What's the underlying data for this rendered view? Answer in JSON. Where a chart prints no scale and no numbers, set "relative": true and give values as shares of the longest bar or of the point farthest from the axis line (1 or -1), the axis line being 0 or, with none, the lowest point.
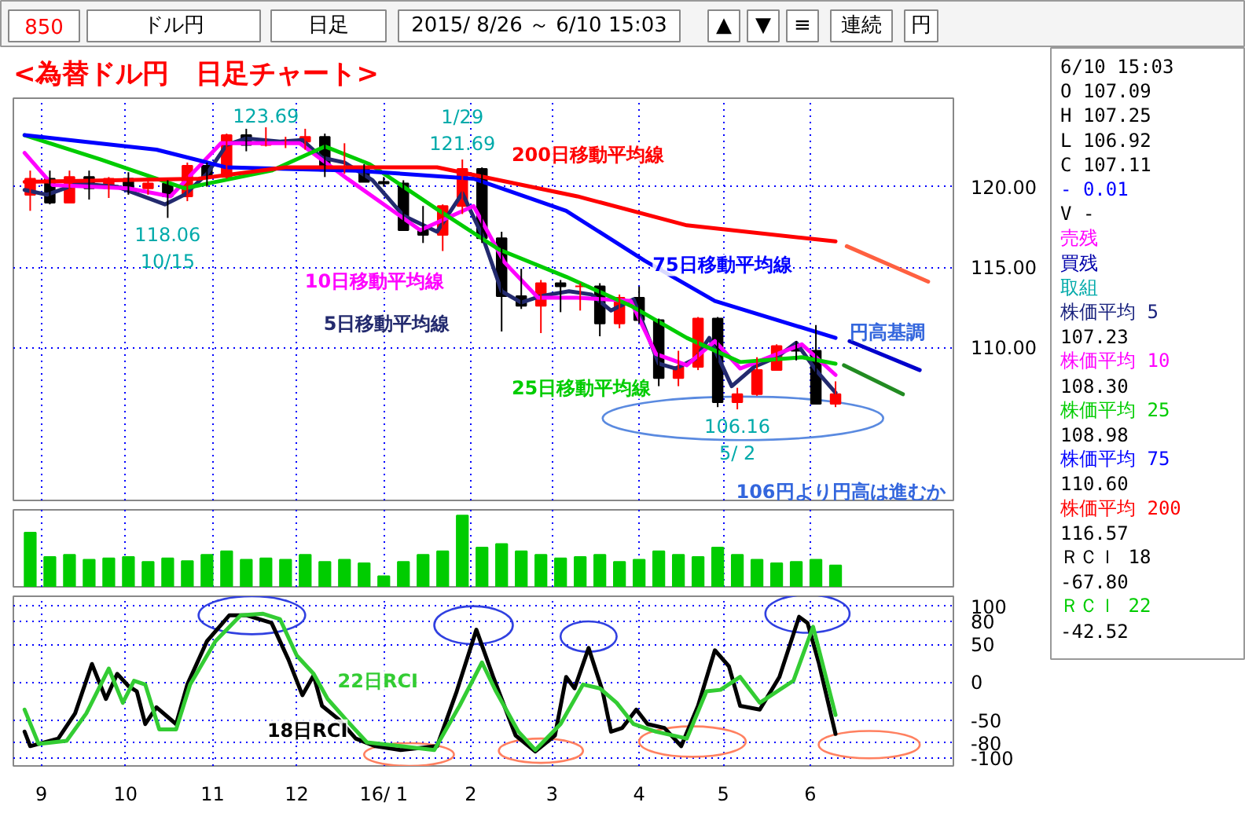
{
  "chart_data": [
    {
      "type": "other",
      "annotations": [
        "850",
        "ドル円",
        "日足",
        "2015/ 8/26 ～ 6/10 15:03",
        "▲",
        "▼",
        "≡",
        "連続",
        "円"
      ]
    },
    {
      "type": "candlestick",
      "title": "<為替ドル円　日足チャート>",
      "x": [
        "2015-08-28",
        "2015-09-04",
        "2015-09-11",
        "2015-09-18",
        "2015-09-25",
        "2015-10-02",
        "2015-10-09",
        "2015-10-16",
        "2015-10-23",
        "2015-10-30",
        "2015-11-06",
        "2015-11-13",
        "2015-11-20",
        "2015-11-27",
        "2015-12-04",
        "2015-12-11",
        "2015-12-18",
        "2015-12-25",
        "2016-01-01",
        "2016-01-08",
        "2016-01-15",
        "2016-01-22",
        "2016-01-29",
        "2016-02-05",
        "2016-02-12",
        "2016-02-19",
        "2016-02-26",
        "2016-03-04",
        "2016-03-11",
        "2016-03-18",
        "2016-03-25",
        "2016-04-01",
        "2016-04-08",
        "2016-04-15",
        "2016-04-22",
        "2016-04-29",
        "2016-05-06",
        "2016-05-13",
        "2016-05-20",
        "2016-05-27",
        "2016-06-03",
        "2016-06-10"
      ],
      "ohlc": [
        [
          119.5,
          121.0,
          118.5,
          120.5
        ],
        [
          120.5,
          121.0,
          118.9,
          119.0
        ],
        [
          119.0,
          121.0,
          119.0,
          120.6
        ],
        [
          120.6,
          121.0,
          119.2,
          119.9
        ],
        [
          119.9,
          120.6,
          119.3,
          120.5
        ],
        [
          120.5,
          120.9,
          119.5,
          119.9
        ],
        [
          119.9,
          120.5,
          119.5,
          120.2
        ],
        [
          120.2,
          120.4,
          118.06,
          119.4
        ],
        [
          119.4,
          121.5,
          119.1,
          121.3
        ],
        [
          121.3,
          121.5,
          120.0,
          120.6
        ],
        [
          120.6,
          123.3,
          120.5,
          123.2
        ],
        [
          123.2,
          123.6,
          122.2,
          122.6
        ],
        [
          122.6,
          123.69,
          122.5,
          122.8
        ],
        [
          122.8,
          123.1,
          122.4,
          122.8
        ],
        [
          122.8,
          123.6,
          122.3,
          123.1
        ],
        [
          123.1,
          123.3,
          120.6,
          121.0
        ],
        [
          121.0,
          122.7,
          120.8,
          121.1
        ],
        [
          121.1,
          121.4,
          120.3,
          120.3
        ],
        [
          120.3,
          120.6,
          120.0,
          120.2
        ],
        [
          120.2,
          120.4,
          117.3,
          117.3
        ],
        [
          117.3,
          118.8,
          116.5,
          117.0
        ],
        [
          117.0,
          118.9,
          116.0,
          118.8
        ],
        [
          118.8,
          121.69,
          118.3,
          121.1
        ],
        [
          121.1,
          121.2,
          116.5,
          116.8
        ],
        [
          116.8,
          117.2,
          111.0,
          113.2
        ],
        [
          113.2,
          114.9,
          112.4,
          112.6
        ],
        [
          112.6,
          114.2,
          110.9,
          114.0
        ],
        [
          114.0,
          114.2,
          112.2,
          113.8
        ],
        [
          113.8,
          114.0,
          112.3,
          113.8
        ],
        [
          113.8,
          114.0,
          110.7,
          111.5
        ],
        [
          111.5,
          113.3,
          111.2,
          113.1
        ],
        [
          113.1,
          113.8,
          111.5,
          111.7
        ],
        [
          111.7,
          111.8,
          107.6,
          108.1
        ],
        [
          108.1,
          109.8,
          107.6,
          108.8
        ],
        [
          108.8,
          111.9,
          108.6,
          111.8
        ],
        [
          111.8,
          111.9,
          106.3,
          106.6
        ],
        [
          106.6,
          107.5,
          106.16,
          107.1
        ],
        [
          107.1,
          109.4,
          107.0,
          108.6
        ],
        [
          108.6,
          110.2,
          108.6,
          110.1
        ],
        [
          110.1,
          110.4,
          109.2,
          109.8
        ],
        [
          109.8,
          111.4,
          106.5,
          106.5
        ],
        [
          106.5,
          107.9,
          106.3,
          107.1
        ]
      ],
      "series": [
        {
          "type": "line",
          "name": "5日移動平均線",
          "color": "#232a6e",
          "x": [
            "2015-08-26",
            "2015-09-03",
            "2015-09-14",
            "2015-09-28",
            "2015-10-15",
            "2015-10-22",
            "2015-10-30",
            "2015-11-06",
            "2015-11-13",
            "2015-11-25",
            "2015-12-03",
            "2015-12-10",
            "2015-12-18",
            "2015-12-28",
            "2016-01-08",
            "2016-01-20",
            "2016-01-29",
            "2016-02-05",
            "2016-02-12",
            "2016-02-19",
            "2016-02-26",
            "2016-03-07",
            "2016-03-15",
            "2016-03-22",
            "2016-03-30",
            "2016-04-08",
            "2016-04-14",
            "2016-04-21",
            "2016-04-26",
            "2016-05-04",
            "2016-05-12",
            "2016-05-20",
            "2016-05-27",
            "2016-06-03",
            "2016-06-10"
          ],
          "values": [
            119.8,
            119.5,
            120.2,
            120.0,
            118.9,
            119.5,
            120.8,
            122.6,
            123.0,
            122.8,
            122.9,
            121.8,
            121.5,
            120.4,
            118.2,
            117.2,
            119.6,
            117.0,
            113.5,
            112.8,
            113.2,
            113.5,
            113.3,
            112.3,
            113.0,
            109.0,
            108.7,
            109.3,
            110.6,
            107.6,
            108.8,
            109.4,
            110.3,
            108.6,
            107.2
          ]
        },
        {
          "type": "line",
          "name": "10日移動平均線",
          "color": "#ff00ff",
          "x": [
            "2015-08-26",
            "2015-09-05",
            "2015-10-02",
            "2015-10-17",
            "2015-11-04",
            "2015-12-02",
            "2015-12-19",
            "2016-01-14",
            "2016-02-02",
            "2016-02-13",
            "2016-02-25",
            "2016-03-10",
            "2016-03-29",
            "2016-04-07",
            "2016-04-18",
            "2016-04-28",
            "2016-05-07",
            "2016-05-29",
            "2016-06-10"
          ],
          "values": [
            122.1,
            120.1,
            119.9,
            119.4,
            122.7,
            122.7,
            120.5,
            117.3,
            118.8,
            115.3,
            113.1,
            113.1,
            112.9,
            109.6,
            108.9,
            110.4,
            108.7,
            110.2,
            108.3
          ]
        },
        {
          "type": "line",
          "name": "25日移動平均線",
          "color": "#00cc00",
          "x": [
            "2015-08-26",
            "2015-09-22",
            "2015-10-22",
            "2015-11-22",
            "2015-12-11",
            "2015-12-27",
            "2016-01-20",
            "2016-02-11",
            "2016-03-06",
            "2016-03-29",
            "2016-04-18",
            "2016-05-07",
            "2016-05-29",
            "2016-06-10"
          ],
          "values": [
            123.2,
            121.7,
            119.9,
            121.0,
            122.5,
            121.4,
            118.6,
            116.1,
            114.4,
            112.6,
            110.6,
            109.1,
            109.4,
            109.0
          ]
        },
        {
          "type": "line",
          "name": "75日移動平均線",
          "color": "#0000ff",
          "x": [
            "2015-08-26",
            "2015-10-12",
            "2015-11-06",
            "2015-12-22",
            "2016-02-02",
            "2016-03-06",
            "2016-04-03",
            "2016-04-28",
            "2016-06-10"
          ],
          "values": [
            123.2,
            122.3,
            121.2,
            121.0,
            120.5,
            118.5,
            115.4,
            112.9,
            110.6
          ]
        },
        {
          "type": "line",
          "name": "200日移動平均線",
          "color": "#ff0000",
          "x": [
            "2015-08-26",
            "2015-10-27",
            "2015-11-27",
            "2016-01-20",
            "2016-03-10",
            "2016-04-18",
            "2016-06-10"
          ],
          "values": [
            120.3,
            120.5,
            121.2,
            121.2,
            119.4,
            117.6,
            116.6
          ]
        },
        {
          "type": "line",
          "color": "#ff6040",
          "x": [
            "2016-06-14",
            "2016-07-13"
          ],
          "values": [
            116.3,
            114.1
          ]
        },
        {
          "type": "line",
          "color": "#0000cc",
          "x": [
            "2016-06-15",
            "2016-07-10"
          ],
          "values": [
            110.4,
            108.6
          ]
        },
        {
          "type": "line",
          "color": "#228b22",
          "x": [
            "2016-06-13",
            "2016-07-04"
          ],
          "values": [
            108.9,
            107.1
          ]
        }
      ],
      "xlim": [
        "2015-08-22",
        "2016-07-22"
      ],
      "ylim": [
        100.5,
        125.5
      ],
      "xticks": [
        {
          "value": "2015-09-01",
          "label": null
        },
        {
          "value": "2015-10-01",
          "label": null
        },
        {
          "value": "2015-11-01",
          "label": null
        },
        {
          "value": "2015-12-01",
          "label": null
        },
        {
          "value": "2016-01-01",
          "label": null
        },
        {
          "value": "2016-02-01",
          "label": null
        },
        {
          "value": "2016-03-01",
          "label": null
        },
        {
          "value": "2016-04-01",
          "label": null
        },
        {
          "value": "2016-05-01",
          "label": null
        },
        {
          "value": "2016-06-01",
          "label": null
        }
      ],
      "yticks": [
        {
          "value": 110,
          "label": "110.00"
        },
        {
          "value": 115,
          "label": "115.00"
        },
        {
          "value": 120,
          "label": "120.00"
        }
      ],
      "tick_labels": "y",
      "grid": true,
      "annotations": [
        {
          "text": "123.69",
          "x": "2015-11-20",
          "y": 123.69
        },
        {
          "text": "118.06\n10/15",
          "x": "2015-10-16",
          "y": 118.06
        },
        {
          "text": "1/29\n121.69",
          "x": "2016-01-29",
          "y": 121.69
        },
        {
          "text": "106.16\n5/ 2",
          "x": "2016-05-06",
          "y": 106.16
        },
        "円高基調",
        "106円より円高は進むか"
      ]
    },
    {
      "type": "bar",
      "relative": true,
      "color": "#00cc00",
      "x": [
        "2015-08-28",
        "2015-09-04",
        "2015-09-11",
        "2015-09-18",
        "2015-09-25",
        "2015-10-02",
        "2015-10-09",
        "2015-10-16",
        "2015-10-23",
        "2015-10-30",
        "2015-11-06",
        "2015-11-13",
        "2015-11-20",
        "2015-11-27",
        "2015-12-04",
        "2015-12-11",
        "2015-12-18",
        "2015-12-25",
        "2016-01-01",
        "2016-01-08",
        "2016-01-15",
        "2016-01-22",
        "2016-01-29",
        "2016-02-05",
        "2016-02-12",
        "2016-02-19",
        "2016-02-26",
        "2016-03-04",
        "2016-03-11",
        "2016-03-18",
        "2016-03-25",
        "2016-04-01",
        "2016-04-08",
        "2016-04-15",
        "2016-04-22",
        "2016-04-29",
        "2016-05-06",
        "2016-05-13",
        "2016-05-20",
        "2016-05-27",
        "2016-06-03",
        "2016-06-10"
      ],
      "values": [
        0.76,
        0.42,
        0.45,
        0.38,
        0.4,
        0.42,
        0.35,
        0.4,
        0.36,
        0.45,
        0.5,
        0.38,
        0.4,
        0.38,
        0.45,
        0.35,
        0.38,
        0.33,
        0.15,
        0.35,
        0.45,
        0.5,
        1.0,
        0.55,
        0.6,
        0.5,
        0.45,
        0.4,
        0.42,
        0.45,
        0.35,
        0.38,
        0.5,
        0.45,
        0.42,
        0.55,
        0.45,
        0.38,
        0.33,
        0.35,
        0.38,
        0.3
      ],
      "xlim": [
        "2015-08-22",
        "2016-07-22"
      ],
      "xticks": [
        {
          "value": "2015-09-01",
          "label": null
        },
        {
          "value": "2015-10-01",
          "label": null
        },
        {
          "value": "2015-11-01",
          "label": null
        },
        {
          "value": "2015-12-01",
          "label": null
        },
        {
          "value": "2016-01-01",
          "label": null
        },
        {
          "value": "2016-02-01",
          "label": null
        },
        {
          "value": "2016-03-01",
          "label": null
        },
        {
          "value": "2016-04-01",
          "label": null
        },
        {
          "value": "2016-05-01",
          "label": null
        },
        {
          "value": "2016-06-01",
          "label": null
        }
      ],
      "tick_labels": false,
      "grid": "x"
    },
    {
      "type": "line",
      "series": [
        {
          "name": "18日RCI",
          "color": "#000000",
          "x": [
            "2015-08-26",
            "2015-08-28",
            "2015-09-07",
            "2015-09-13",
            "2015-09-19",
            "2015-09-24",
            "2015-09-28",
            "2015-10-02",
            "2015-10-05",
            "2015-10-08",
            "2015-10-12",
            "2015-10-19",
            "2015-10-23",
            "2015-10-30",
            "2015-11-07",
            "2015-11-13",
            "2015-11-22",
            "2015-11-28",
            "2015-12-03",
            "2015-12-07",
            "2015-12-10",
            "2015-12-16",
            "2015-12-22",
            "2015-12-29",
            "2016-01-07",
            "2016-01-20",
            "2016-01-27",
            "2016-02-03",
            "2016-02-09",
            "2016-02-17",
            "2016-02-24",
            "2016-03-02",
            "2016-03-06",
            "2016-03-09",
            "2016-03-14",
            "2016-03-19",
            "2016-03-22",
            "2016-03-26",
            "2016-03-31",
            "2016-04-04",
            "2016-04-10",
            "2016-04-16",
            "2016-04-22",
            "2016-04-28",
            "2016-05-03",
            "2016-05-07",
            "2016-05-14",
            "2016-05-21",
            "2016-05-28",
            "2016-05-31",
            "2016-06-04",
            "2016-06-10"
          ],
          "values": [
            -65,
            -84,
            -74,
            -41,
            24,
            -22,
            11,
            -5,
            -12,
            -55,
            -33,
            -55,
            -3,
            54,
            88,
            88,
            78,
            30,
            -17,
            9,
            -31,
            -49,
            -74,
            -84,
            -89,
            -84,
            -12,
            69,
            7,
            -70,
            -91,
            -70,
            7,
            -8,
            45,
            -12,
            -65,
            -60,
            -36,
            -55,
            -60,
            -84,
            -31,
            42,
            21,
            -31,
            -36,
            7,
            86,
            78,
            26,
            -68
          ]
        },
        {
          "name": "22日RCI",
          "color": "#33cc33",
          "x": [
            "2015-08-26",
            "2015-08-31",
            "2015-09-10",
            "2015-09-17",
            "2015-09-25",
            "2015-09-30",
            "2015-10-04",
            "2015-10-08",
            "2015-10-13",
            "2015-10-19",
            "2015-10-24",
            "2015-11-02",
            "2015-11-11",
            "2015-11-19",
            "2015-11-25",
            "2015-12-01",
            "2015-12-07",
            "2015-12-12",
            "2015-12-19",
            "2015-12-26",
            "2016-01-07",
            "2016-01-19",
            "2016-01-28",
            "2016-02-05",
            "2016-02-10",
            "2016-02-18",
            "2016-02-24",
            "2016-03-04",
            "2016-03-12",
            "2016-03-18",
            "2016-03-24",
            "2016-03-30",
            "2016-04-07",
            "2016-04-18",
            "2016-04-25",
            "2016-04-30",
            "2016-05-07",
            "2016-05-14",
            "2016-05-26",
            "2016-06-02",
            "2016-06-10"
          ],
          "values": [
            -36,
            -81,
            -77,
            -41,
            18,
            -27,
            2,
            -3,
            -62,
            -62,
            -3,
            54,
            88,
            90,
            83,
            35,
            11,
            -22,
            -51,
            -79,
            -84,
            -89,
            -31,
            26,
            -12,
            -65,
            -89,
            -55,
            -3,
            -8,
            -27,
            -55,
            -65,
            -74,
            -12,
            -10,
            7,
            -27,
            2,
            73,
            -43
          ]
        }
      ],
      "xlim": [
        "2015-08-22",
        "2016-07-22"
      ],
      "ylim": [
        -110,
        113
      ],
      "xticks": [
        {
          "value": "2015-09-01",
          "label": "9"
        },
        {
          "value": "2015-10-01",
          "label": "10"
        },
        {
          "value": "2015-11-01",
          "label": "11"
        },
        {
          "value": "2015-12-01",
          "label": "12"
        },
        {
          "value": "2016-01-01",
          "label": "16/ 1"
        },
        {
          "value": "2016-02-01",
          "label": "2"
        },
        {
          "value": "2016-03-01",
          "label": "3"
        },
        {
          "value": "2016-04-01",
          "label": "4"
        },
        {
          "value": "2016-05-01",
          "label": "5"
        },
        {
          "value": "2016-06-01",
          "label": "6"
        }
      ],
      "yticks": [
        100,
        80,
        50,
        0,
        -50,
        -80,
        -100
      ],
      "grid": true
    },
    {
      "type": "other",
      "annotations": [
        "6/10 15:03",
        "O  107.09",
        "H  107.25",
        "L  106.92",
        "C  107.11",
        "-  0.01",
        "V  -",
        "売残",
        "買残",
        "取組",
        "株価平均 5",
        "107.23",
        "株価平均 10",
        "108.30",
        "株価平均 25",
        "108.98",
        "株価平均 75",
        "110.60",
        "株価平均 200",
        "116.57",
        "ＲＣＩ 18",
        "-67.80",
        "ＲＣＩ 22",
        "-42.52"
      ],
      "colors": [
        "#000000",
        "#000000",
        "#000000",
        "#000000",
        "#000000",
        "#0000ff",
        "#000000",
        "#ff00ff",
        "#0000aa",
        "#00aaaa",
        "#1a237e",
        "#000000",
        "#ff00ff",
        "#000000",
        "#00cc00",
        "#000000",
        "#0000ff",
        "#000000",
        "#ff0000",
        "#000000",
        "#000000",
        "#000000",
        "#00cc00",
        "#000000"
      ]
    }
  ]
}
